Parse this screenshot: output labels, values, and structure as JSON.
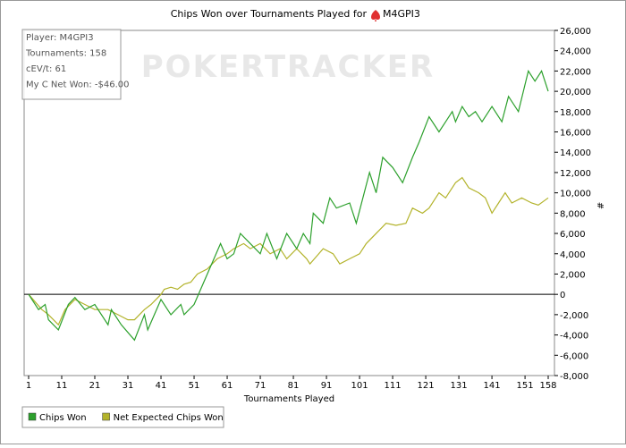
{
  "chart_data": {
    "type": "line",
    "title": "Chips Won over Tournaments Played for",
    "player": "M4GPI3",
    "watermark": "POKERTRACKER",
    "xlabel": "Tournaments Played",
    "ylabel": "#",
    "xlim": [
      1,
      158
    ],
    "xticks": [
      1,
      11,
      21,
      31,
      41,
      51,
      61,
      71,
      81,
      91,
      101,
      111,
      121,
      131,
      141,
      151,
      158
    ],
    "ylim": [
      -8000,
      26000
    ],
    "yticks": [
      {
        "value": -8000,
        "label": "-8,000"
      },
      {
        "value": -6000,
        "label": "-6,000"
      },
      {
        "value": -4000,
        "label": "-4,000"
      },
      {
        "value": -2000,
        "label": "-2,000"
      },
      0,
      {
        "value": 2000,
        "label": "2,000"
      },
      {
        "value": 4000,
        "label": "4,000"
      },
      {
        "value": 6000,
        "label": "6,000"
      },
      {
        "value": 8000,
        "label": "8,000"
      },
      {
        "value": 10000,
        "label": "10,000"
      },
      {
        "value": 12000,
        "label": "12,000"
      },
      {
        "value": 14000,
        "label": "14,000"
      },
      {
        "value": 16000,
        "label": "16,000"
      },
      {
        "value": 18000,
        "label": "18,000"
      },
      {
        "value": 20000,
        "label": "20,000"
      },
      {
        "value": 22000,
        "label": "22,000"
      },
      {
        "value": 24000,
        "label": "24,000"
      },
      {
        "value": 26000,
        "label": "26,000"
      }
    ],
    "info_box": [
      "Player: M4GPI3",
      "Tournaments: 158",
      "cEV/t: 61",
      "My C Net Won: -$46.00"
    ],
    "series": [
      {
        "name": "Chips Won",
        "color": "#2ca02c",
        "x": [
          1,
          4,
          6,
          7,
          10,
          13,
          15,
          18,
          21,
          25,
          26,
          29,
          33,
          36,
          37,
          41,
          44,
          47,
          48,
          51,
          55,
          59,
          61,
          63,
          65,
          68,
          71,
          73,
          76,
          79,
          82,
          84,
          86,
          87,
          90,
          92,
          94,
          98,
          100,
          104,
          106,
          108,
          111,
          114,
          117,
          119,
          122,
          125,
          127,
          129,
          130,
          132,
          134,
          136,
          138,
          141,
          144,
          146,
          149,
          152,
          154,
          156,
          158
        ],
        "values": [
          0,
          -1500,
          -1000,
          -2500,
          -3500,
          -1000,
          -300,
          -1500,
          -1000,
          -3000,
          -1500,
          -3000,
          -4500,
          -2000,
          -3500,
          -500,
          -2000,
          -1000,
          -2000,
          -1000,
          2000,
          5000,
          3500,
          4000,
          6000,
          5000,
          4000,
          6000,
          3500,
          6000,
          4500,
          6000,
          5000,
          8000,
          7000,
          9500,
          8500,
          9000,
          7000,
          12000,
          10000,
          13500,
          12500,
          11000,
          13500,
          15000,
          17500,
          16000,
          17000,
          18000,
          17000,
          18500,
          17500,
          18000,
          17000,
          18500,
          17000,
          19500,
          18000,
          22000,
          21000,
          22000,
          20000
        ]
      },
      {
        "name": "Net Expected Chips Won",
        "color": "#b3b32b",
        "x": [
          1,
          5,
          7,
          10,
          12,
          15,
          18,
          21,
          25,
          28,
          31,
          33,
          36,
          38,
          41,
          42,
          44,
          46,
          48,
          50,
          52,
          55,
          58,
          61,
          63,
          66,
          68,
          71,
          74,
          77,
          79,
          82,
          85,
          86,
          90,
          93,
          95,
          98,
          101,
          103,
          106,
          109,
          112,
          115,
          117,
          120,
          122,
          125,
          127,
          130,
          132,
          134,
          137,
          139,
          141,
          143,
          145,
          147,
          150,
          153,
          155,
          158
        ],
        "values": [
          0,
          -1500,
          -2000,
          -3000,
          -1500,
          -500,
          -1000,
          -1500,
          -1500,
          -2000,
          -2500,
          -2500,
          -1500,
          -1000,
          0,
          500,
          700,
          500,
          1000,
          1200,
          2000,
          2500,
          3500,
          4000,
          4500,
          5000,
          4500,
          5000,
          4000,
          4500,
          3500,
          4500,
          3500,
          3000,
          4500,
          4000,
          3000,
          3500,
          4000,
          5000,
          6000,
          7000,
          6800,
          7000,
          8500,
          8000,
          8500,
          10000,
          9500,
          11000,
          11500,
          10500,
          10000,
          9500,
          8000,
          9000,
          10000,
          9000,
          9500,
          9000,
          8800,
          9500
        ]
      }
    ]
  }
}
